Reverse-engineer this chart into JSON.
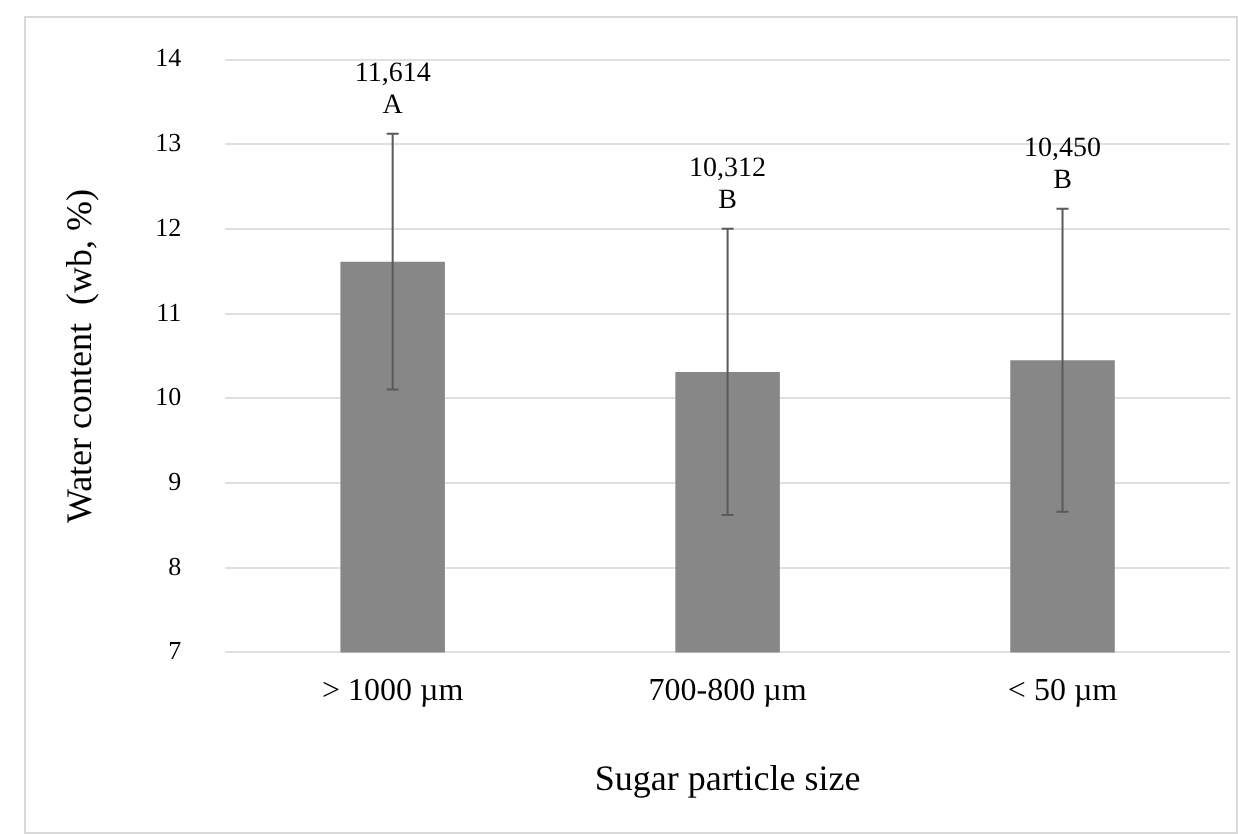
{
  "chart_data": {
    "type": "bar",
    "xlabel": "Sugar particle size",
    "ylabel": "Water content  (wb, %)",
    "categories": [
      "> 1000 µm",
      "700-800 µm",
      "< 50 µm"
    ],
    "values": [
      11.614,
      10.312,
      10.45
    ],
    "errors": [
      1.51,
      1.69,
      1.79
    ],
    "annotations": [
      "11,614",
      "A",
      "10,312",
      "B",
      "10,450",
      "B"
    ],
    "color": "#878787",
    "ylim": [
      7,
      14
    ],
    "yticks": [
      7,
      8,
      9,
      10,
      11,
      12,
      13,
      14
    ],
    "grid": "y",
    "legend": false
  }
}
